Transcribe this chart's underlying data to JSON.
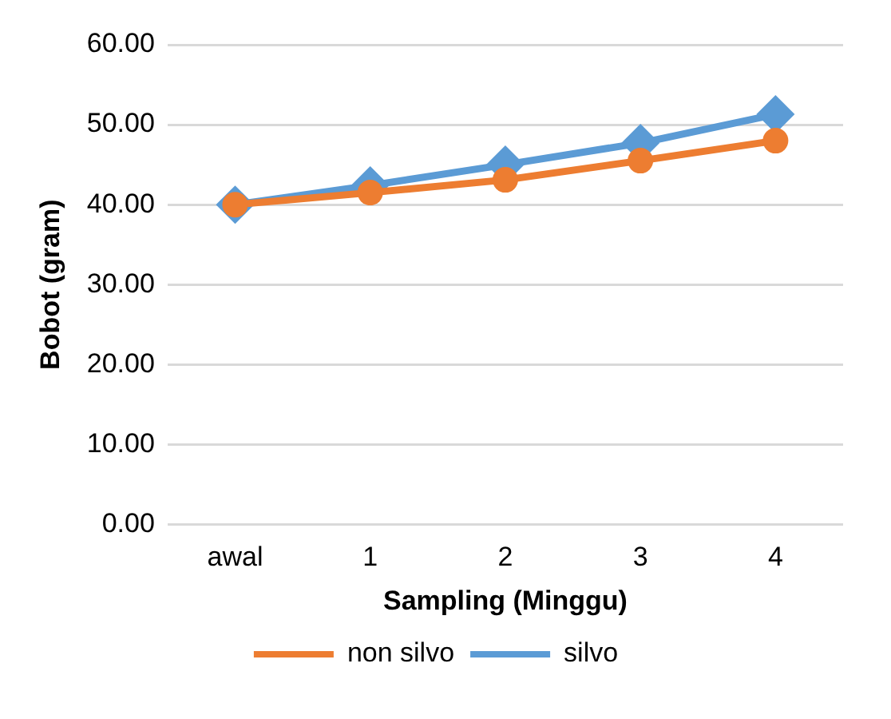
{
  "chart_data": {
    "type": "line",
    "xlabel": "Sampling (Minggu)",
    "ylabel": "Bobot (gram)",
    "categories": [
      "awal",
      "1",
      "2",
      "3",
      "4"
    ],
    "series": [
      {
        "name": "non silvo",
        "color": "#ed7d31",
        "marker": "circle",
        "values": [
          40.0,
          41.5,
          43.1,
          45.5,
          48.0
        ]
      },
      {
        "name": "silvo",
        "color": "#5b9bd5",
        "marker": "diamond",
        "values": [
          40.0,
          42.4,
          45.0,
          47.7,
          51.3
        ]
      }
    ],
    "ylim": [
      0,
      60
    ],
    "yticks": [
      {
        "value": 0,
        "label": "0.00"
      },
      {
        "value": 10,
        "label": "10.00"
      },
      {
        "value": 20,
        "label": "20.00"
      },
      {
        "value": 30,
        "label": "30.00"
      },
      {
        "value": 40,
        "label": "40.00"
      },
      {
        "value": 50,
        "label": "50.00"
      },
      {
        "value": 60,
        "label": "60.00"
      }
    ],
    "grid": "y",
    "legend": "bottom",
    "line_style": "solid"
  }
}
